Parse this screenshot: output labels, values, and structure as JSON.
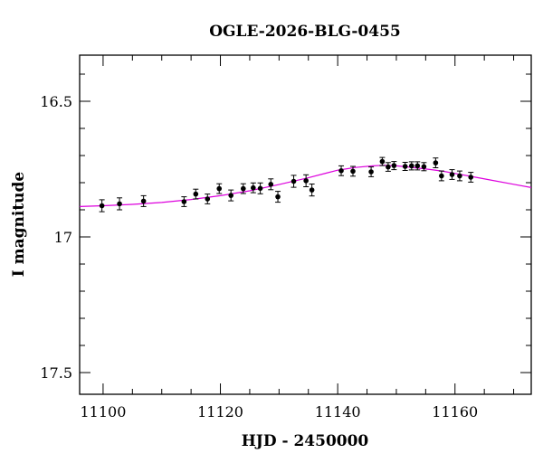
{
  "chart_data": {
    "type": "scatter",
    "title": "OGLE-2026-BLG-0455",
    "xlabel": "HJD - 2450000",
    "ylabel": "I magnitude",
    "xlim": [
      11096,
      11173
    ],
    "ylim": [
      17.58,
      16.33
    ],
    "y_inverted": true,
    "grid": false,
    "legend": "none",
    "x_major_ticks": [
      11100,
      11120,
      11140,
      11160
    ],
    "x_tick_labels": [
      "11100",
      "11120",
      "11140",
      "11160"
    ],
    "y_major_ticks": [
      16.5,
      17.0,
      17.5
    ],
    "y_tick_labels": [
      "16.5",
      "17",
      "17.5"
    ],
    "colors": {
      "points": "#000000",
      "model": "#dd00dd"
    },
    "series": [
      {
        "type": "scatter_errorbar",
        "x": [
          11099.8,
          11102.8,
          11106.9,
          11113.8,
          11115.8,
          11117.8,
          11119.8,
          11121.8,
          11123.9,
          11125.6,
          11126.8,
          11128.6,
          11129.8,
          11132.5,
          11134.6,
          11135.6,
          11140.6,
          11142.6,
          11145.7,
          11147.6,
          11148.6,
          11149.6,
          11151.5,
          11152.6,
          11153.6,
          11154.7,
          11156.7,
          11157.7,
          11159.5,
          11160.8,
          11162.7
        ],
        "y": [
          16.885,
          16.878,
          16.868,
          16.87,
          16.842,
          16.86,
          16.822,
          16.847,
          16.822,
          16.819,
          16.821,
          16.806,
          16.852,
          16.795,
          16.793,
          16.827,
          16.756,
          16.758,
          16.76,
          16.722,
          16.742,
          16.737,
          16.74,
          16.738,
          16.738,
          16.741,
          16.727,
          16.775,
          16.77,
          16.775,
          16.78
        ],
        "yerr": [
          0.022,
          0.022,
          0.02,
          0.018,
          0.018,
          0.018,
          0.018,
          0.02,
          0.018,
          0.018,
          0.02,
          0.02,
          0.02,
          0.022,
          0.022,
          0.022,
          0.018,
          0.018,
          0.018,
          0.015,
          0.016,
          0.015,
          0.015,
          0.015,
          0.015,
          0.015,
          0.018,
          0.018,
          0.018,
          0.018,
          0.018
        ]
      },
      {
        "type": "line",
        "x": [
          11096,
          11100,
          11105,
          11110,
          11115,
          11120,
          11125,
          11130,
          11135,
          11138,
          11140,
          11143,
          11146,
          11148,
          11150,
          11152,
          11154,
          11156,
          11158,
          11160,
          11163,
          11166,
          11170,
          11173
        ],
        "y": [
          16.888,
          16.885,
          16.88,
          16.873,
          16.862,
          16.848,
          16.83,
          16.807,
          16.782,
          16.765,
          16.754,
          16.744,
          16.738,
          16.736,
          16.738,
          16.742,
          16.747,
          16.752,
          16.758,
          16.766,
          16.778,
          16.79,
          16.806,
          16.818
        ]
      }
    ]
  }
}
